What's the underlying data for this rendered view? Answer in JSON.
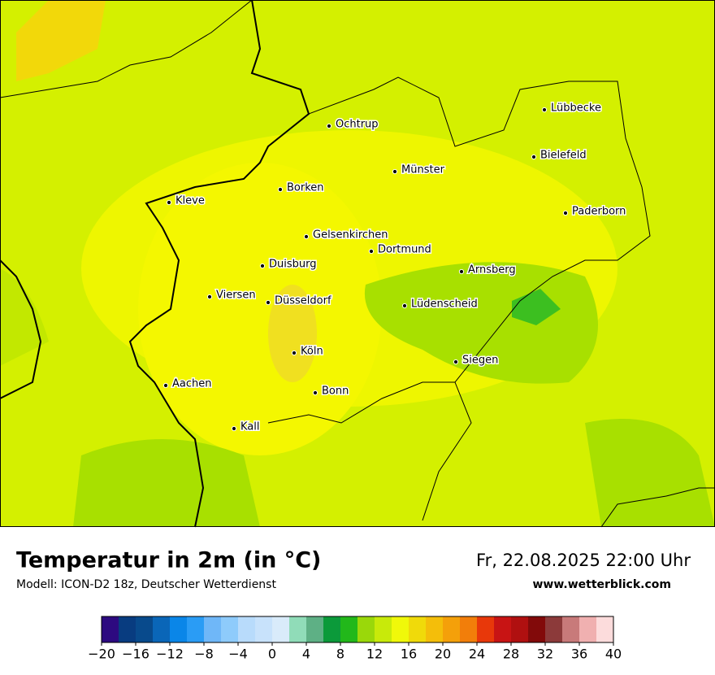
{
  "map": {
    "cities": [
      "Lübbecke",
      "Ochtrup",
      "Bielefeld",
      "Münster",
      "Borken",
      "Kleve",
      "Paderborn",
      "Gelsenkirchen",
      "Dortmund",
      "Duisburg",
      "Arnsberg",
      "Viersen",
      "Düsseldorf",
      "Lüdenscheid",
      "Köln",
      "Siegen",
      "Aachen",
      "Bonn",
      "Kall"
    ]
  },
  "header": {
    "title": "Temperatur in 2m (in °C)",
    "subtitle": "Modell: ICON-D2 18z, Deutscher Wetterdienst",
    "datetime": "Fr, 22.08.2025 22:00 Uhr",
    "website": "www.wetterblick.com"
  },
  "colorbar": {
    "ticks": [
      {
        "value": -20,
        "label": "−20"
      },
      {
        "value": -16,
        "label": "−16"
      },
      {
        "value": -12,
        "label": "−12"
      },
      {
        "value": -8,
        "label": "−8"
      },
      {
        "value": -4,
        "label": "−4"
      },
      0,
      4,
      8,
      12,
      16,
      20,
      24,
      28,
      32,
      36,
      40
    ],
    "colors": [
      "#2d0a80",
      "#083c80",
      "#084a8c",
      "#0a66b8",
      "#0a86e8",
      "#2a9cf5",
      "#6fb7f8",
      "#8ecbfb",
      "#b8dbfb",
      "#c8e2fb",
      "#d9ebfa",
      "#90dcb8",
      "#5eb085",
      "#0b9a3a",
      "#22b81a",
      "#9ad80a",
      "#c8ea0a",
      "#f0f80a",
      "#f0da0a",
      "#f4be0a",
      "#f4a00a",
      "#f27e0a",
      "#e8380a",
      "#c81414",
      "#b01010",
      "#820a0a",
      "#8c3a3a",
      "#c87a7a",
      "#f0b0b0",
      "#fcdcdc"
    ]
  }
}
